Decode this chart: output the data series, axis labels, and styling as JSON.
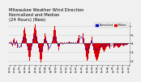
{
  "title": "Milwaukee Weather Wind Direction\nNormalized and Median\n(24 Hours) (New)",
  "background_color": "#f0f0f0",
  "plot_bg_color": "#f0f0f0",
  "grid_color": "#aaaaaa",
  "bar_color": "#dd0000",
  "blue_color": "#0000cc",
  "ylim": [
    -2.5,
    2.5
  ],
  "ytick_vals": [
    -2,
    -1,
    0,
    1,
    2
  ],
  "ytick_labels": [
    "2",
    "3",
    "4",
    "5",
    ""
  ],
  "n_bars": 144,
  "bar_data": [
    0.1,
    0.05,
    0.2,
    -0.1,
    -0.3,
    0.4,
    0.6,
    -0.2,
    0.1,
    0.3,
    -0.5,
    -0.8,
    -1.2,
    -0.9,
    -0.4,
    0.3,
    0.8,
    1.5,
    1.8,
    1.2,
    0.6,
    -0.3,
    -0.8,
    -1.5,
    -2.0,
    -1.5,
    -0.8,
    -0.3,
    0.5,
    1.2,
    1.8,
    2.2,
    1.5,
    0.8,
    0.2,
    -0.5,
    -1.0,
    -1.8,
    -2.2,
    -1.8,
    -1.0,
    -0.3,
    0.5,
    1.2,
    0.8,
    0.3,
    -0.2,
    -0.8,
    -1.5,
    -1.0,
    -0.4,
    0.2,
    0.8,
    1.5,
    2.0,
    1.5,
    0.8,
    0.2,
    -0.3,
    -0.8,
    -0.3,
    0.1,
    0.05,
    0.1,
    -0.1,
    0.05,
    0.1,
    0.05,
    0.05,
    0.1,
    0.05,
    0.1,
    0.2,
    0.1,
    0.05,
    0.1,
    0.05,
    0.1,
    0.05,
    0.05,
    0.1,
    0.05,
    0.3,
    0.6,
    1.0,
    1.5,
    2.0,
    1.8,
    1.2,
    0.6,
    -0.2,
    -0.8,
    -1.5,
    -2.0,
    -1.8,
    -1.2,
    -0.6,
    -0.2,
    0.3,
    0.8,
    -0.3,
    -0.8,
    -1.2,
    -1.5,
    -1.8,
    -2.0,
    -1.8,
    -1.5,
    -1.2,
    -0.8,
    -0.5,
    -0.4,
    -0.6,
    -0.8,
    -1.0,
    -0.8,
    -0.6,
    -0.4,
    -0.3,
    -0.2,
    -0.4,
    -0.6,
    -0.8,
    -0.6,
    -0.4,
    -0.5,
    -0.4,
    -0.3,
    -0.2,
    -0.3,
    -0.4,
    -0.5,
    -0.4,
    -0.3,
    -0.2,
    -0.1,
    -0.2,
    -0.3,
    -0.2,
    -0.1,
    -0.2,
    -0.15,
    -0.1,
    -0.05
  ],
  "median_data": [
    0.0,
    0.0,
    0.1,
    -0.05,
    -0.1,
    0.15,
    0.2,
    -0.1,
    0.05,
    0.1,
    -0.2,
    -0.3,
    -0.5,
    -0.4,
    -0.15,
    0.1,
    0.3,
    0.6,
    0.7,
    0.5,
    0.2,
    -0.1,
    -0.3,
    -0.6,
    -0.8,
    -0.6,
    -0.3,
    -0.1,
    0.2,
    0.5,
    0.7,
    0.9,
    0.6,
    0.3,
    0.1,
    -0.2,
    -0.4,
    -0.7,
    -0.9,
    -0.7,
    -0.4,
    -0.1,
    0.2,
    0.5,
    0.3,
    0.1,
    -0.1,
    -0.3,
    -0.6,
    -0.4,
    -0.15,
    0.1,
    0.3,
    0.6,
    0.8,
    0.6,
    0.3,
    0.1,
    -0.1,
    -0.3,
    -0.1,
    0.0,
    0.0,
    0.0,
    -0.05,
    0.0,
    0.05,
    0.0,
    0.0,
    0.0,
    0.0,
    0.0,
    0.1,
    0.05,
    0.0,
    0.05,
    0.0,
    0.05,
    0.0,
    0.0,
    0.05,
    0.0,
    0.1,
    0.2,
    0.4,
    0.6,
    0.8,
    0.7,
    0.5,
    0.2,
    -0.1,
    -0.3,
    -0.6,
    -0.8,
    -0.7,
    -0.5,
    -0.2,
    -0.1,
    0.1,
    0.3,
    -0.1,
    -0.3,
    -0.5,
    -0.6,
    -0.7,
    -0.8,
    -0.7,
    -0.6,
    -0.5,
    -0.3,
    -0.2,
    -0.15,
    -0.2,
    -0.3,
    -0.4,
    -0.3,
    -0.2,
    -0.15,
    -0.1,
    -0.1,
    -0.15,
    -0.2,
    -0.3,
    -0.2,
    -0.15,
    -0.2,
    -0.15,
    -0.1,
    -0.1,
    -0.1,
    -0.15,
    -0.2,
    -0.15,
    -0.1,
    -0.1,
    -0.05,
    -0.1,
    -0.1,
    -0.1,
    -0.05,
    -0.1,
    -0.05,
    -0.05,
    -0.02
  ],
  "legend_blue_label": "Normalized",
  "legend_red_label": "Median",
  "title_fontsize": 3.8,
  "axis_fontsize": 3.0,
  "xtick_fontsize": 2.0
}
